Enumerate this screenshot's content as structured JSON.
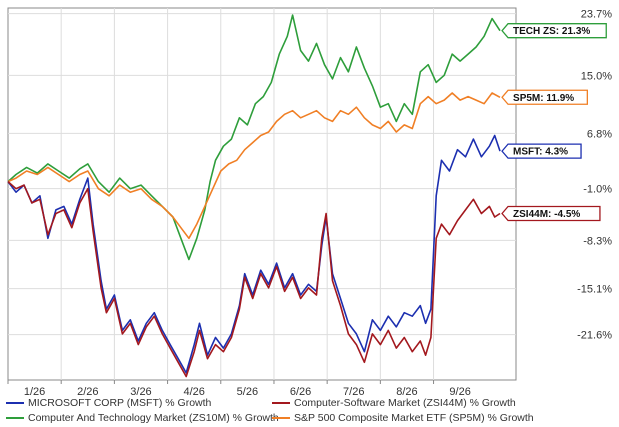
{
  "chart_data": {
    "type": "line",
    "title": "",
    "xlabel": "",
    "ylabel": "",
    "x_ticks": [
      "1/26",
      "2/26",
      "3/26",
      "4/26",
      "5/26",
      "6/26",
      "7/26",
      "8/26",
      "9/26"
    ],
    "y_ticks": [
      "23.7%",
      "15.0%",
      "6.8%",
      "-1.0%",
      "-8.3%",
      "-15.1%",
      "-21.6%"
    ],
    "y_tick_values": [
      23.7,
      15.0,
      6.8,
      -1.0,
      -8.3,
      -15.1,
      -21.6
    ],
    "ylim": [
      -28,
      24.5
    ],
    "x_range": [
      0,
      9.55
    ],
    "grid": true,
    "legend_position": "bottom",
    "series": [
      {
        "name": "Computer And Technology Market (ZS10M) % Growth",
        "color": "#2e9e3b",
        "end_label": "TECH ZS: 21.3%",
        "points": [
          [
            0.0,
            0.0
          ],
          [
            0.15,
            1.0
          ],
          [
            0.35,
            2.0
          ],
          [
            0.55,
            1.2
          ],
          [
            0.75,
            2.5
          ],
          [
            0.95,
            1.5
          ],
          [
            1.15,
            0.5
          ],
          [
            1.35,
            1.8
          ],
          [
            1.5,
            2.5
          ],
          [
            1.7,
            0.0
          ],
          [
            1.9,
            -1.5
          ],
          [
            2.1,
            0.5
          ],
          [
            2.3,
            -1.0
          ],
          [
            2.5,
            -0.5
          ],
          [
            2.7,
            -2.0
          ],
          [
            2.9,
            -3.5
          ],
          [
            3.1,
            -5.0
          ],
          [
            3.25,
            -8.0
          ],
          [
            3.4,
            -11.0
          ],
          [
            3.55,
            -8.0
          ],
          [
            3.7,
            -4.0
          ],
          [
            3.8,
            0.0
          ],
          [
            3.9,
            3.0
          ],
          [
            4.05,
            5.0
          ],
          [
            4.2,
            6.0
          ],
          [
            4.35,
            9.0
          ],
          [
            4.5,
            8.0
          ],
          [
            4.65,
            11.0
          ],
          [
            4.8,
            12.0
          ],
          [
            4.95,
            14.0
          ],
          [
            5.1,
            18.0
          ],
          [
            5.25,
            20.5
          ],
          [
            5.35,
            23.5
          ],
          [
            5.5,
            18.5
          ],
          [
            5.65,
            17.0
          ],
          [
            5.8,
            19.5
          ],
          [
            5.95,
            16.5
          ],
          [
            6.1,
            14.5
          ],
          [
            6.25,
            17.5
          ],
          [
            6.4,
            15.5
          ],
          [
            6.55,
            19.0
          ],
          [
            6.7,
            16.0
          ],
          [
            6.85,
            13.5
          ],
          [
            7.0,
            10.5
          ],
          [
            7.15,
            11.0
          ],
          [
            7.3,
            8.5
          ],
          [
            7.45,
            11.0
          ],
          [
            7.6,
            9.5
          ],
          [
            7.75,
            15.5
          ],
          [
            7.9,
            16.5
          ],
          [
            8.05,
            14.0
          ],
          [
            8.2,
            15.0
          ],
          [
            8.35,
            18.0
          ],
          [
            8.5,
            17.0
          ],
          [
            8.65,
            18.0
          ],
          [
            8.8,
            19.0
          ],
          [
            8.95,
            20.5
          ],
          [
            9.1,
            23.0
          ],
          [
            9.25,
            21.3
          ]
        ]
      },
      {
        "name": "S&P 500 Composite Market ETF (SP5M) % Growth",
        "color": "#f07f25",
        "end_label": "SP5M: 11.9%",
        "points": [
          [
            0.0,
            0.0
          ],
          [
            0.15,
            0.5
          ],
          [
            0.35,
            1.5
          ],
          [
            0.55,
            1.0
          ],
          [
            0.75,
            2.0
          ],
          [
            0.95,
            1.0
          ],
          [
            1.15,
            0.0
          ],
          [
            1.35,
            1.0
          ],
          [
            1.5,
            1.5
          ],
          [
            1.7,
            -1.0
          ],
          [
            1.9,
            -2.0
          ],
          [
            2.1,
            -0.5
          ],
          [
            2.3,
            -1.5
          ],
          [
            2.5,
            -1.0
          ],
          [
            2.7,
            -2.5
          ],
          [
            2.9,
            -3.5
          ],
          [
            3.1,
            -5.0
          ],
          [
            3.25,
            -6.5
          ],
          [
            3.4,
            -8.0
          ],
          [
            3.55,
            -6.0
          ],
          [
            3.7,
            -3.5
          ],
          [
            3.85,
            -1.0
          ],
          [
            4.0,
            1.5
          ],
          [
            4.15,
            2.5
          ],
          [
            4.3,
            3.0
          ],
          [
            4.45,
            4.5
          ],
          [
            4.6,
            5.5
          ],
          [
            4.75,
            6.5
          ],
          [
            4.9,
            7.0
          ],
          [
            5.05,
            8.5
          ],
          [
            5.2,
            9.5
          ],
          [
            5.35,
            10.0
          ],
          [
            5.5,
            9.0
          ],
          [
            5.65,
            9.5
          ],
          [
            5.8,
            10.0
          ],
          [
            5.95,
            9.0
          ],
          [
            6.1,
            8.5
          ],
          [
            6.25,
            10.0
          ],
          [
            6.4,
            9.5
          ],
          [
            6.55,
            10.5
          ],
          [
            6.7,
            9.0
          ],
          [
            6.85,
            8.0
          ],
          [
            7.0,
            7.5
          ],
          [
            7.15,
            8.5
          ],
          [
            7.3,
            7.0
          ],
          [
            7.45,
            8.0
          ],
          [
            7.6,
            7.5
          ],
          [
            7.75,
            11.0
          ],
          [
            7.9,
            12.0
          ],
          [
            8.05,
            11.0
          ],
          [
            8.2,
            11.5
          ],
          [
            8.35,
            12.5
          ],
          [
            8.5,
            11.5
          ],
          [
            8.65,
            12.0
          ],
          [
            8.8,
            11.5
          ],
          [
            8.95,
            11.0
          ],
          [
            9.1,
            12.5
          ],
          [
            9.25,
            11.9
          ]
        ]
      },
      {
        "name": "MICROSOFT CORP (MSFT) % Growth",
        "color": "#1c2fb0",
        "end_label": "MSFT: 4.3%",
        "points": [
          [
            0.0,
            0.0
          ],
          [
            0.15,
            -1.5
          ],
          [
            0.3,
            -0.5
          ],
          [
            0.45,
            -3.0
          ],
          [
            0.6,
            -2.0
          ],
          [
            0.75,
            -8.0
          ],
          [
            0.9,
            -4.0
          ],
          [
            1.05,
            -3.5
          ],
          [
            1.2,
            -6.0
          ],
          [
            1.35,
            -2.5
          ],
          [
            1.5,
            0.5
          ],
          [
            1.6,
            -6.0
          ],
          [
            1.75,
            -14.0
          ],
          [
            1.85,
            -18.0
          ],
          [
            2.0,
            -16.0
          ],
          [
            2.15,
            -21.0
          ],
          [
            2.3,
            -19.5
          ],
          [
            2.45,
            -22.5
          ],
          [
            2.6,
            -20.0
          ],
          [
            2.75,
            -18.5
          ],
          [
            2.9,
            -21.0
          ],
          [
            3.05,
            -23.0
          ],
          [
            3.2,
            -25.0
          ],
          [
            3.35,
            -27.0
          ],
          [
            3.5,
            -23.0
          ],
          [
            3.6,
            -20.0
          ],
          [
            3.75,
            -24.5
          ],
          [
            3.9,
            -22.0
          ],
          [
            4.05,
            -23.5
          ],
          [
            4.2,
            -21.5
          ],
          [
            4.35,
            -17.5
          ],
          [
            4.45,
            -13.0
          ],
          [
            4.6,
            -16.0
          ],
          [
            4.75,
            -12.5
          ],
          [
            4.9,
            -14.5
          ],
          [
            5.05,
            -11.5
          ],
          [
            5.2,
            -15.0
          ],
          [
            5.35,
            -13.0
          ],
          [
            5.5,
            -16.0
          ],
          [
            5.65,
            -14.5
          ],
          [
            5.8,
            -15.5
          ],
          [
            5.9,
            -9.0
          ],
          [
            5.98,
            -5.0
          ],
          [
            6.1,
            -13.0
          ],
          [
            6.25,
            -16.5
          ],
          [
            6.4,
            -20.0
          ],
          [
            6.55,
            -21.5
          ],
          [
            6.7,
            -24.0
          ],
          [
            6.85,
            -19.5
          ],
          [
            7.0,
            -21.0
          ],
          [
            7.15,
            -19.0
          ],
          [
            7.3,
            -20.5
          ],
          [
            7.45,
            -18.5
          ],
          [
            7.6,
            -19.0
          ],
          [
            7.75,
            -17.5
          ],
          [
            7.85,
            -20.0
          ],
          [
            7.95,
            -18.0
          ],
          [
            8.05,
            -2.0
          ],
          [
            8.15,
            3.0
          ],
          [
            8.3,
            1.5
          ],
          [
            8.45,
            4.5
          ],
          [
            8.6,
            3.5
          ],
          [
            8.75,
            6.0
          ],
          [
            8.9,
            3.5
          ],
          [
            9.05,
            5.0
          ],
          [
            9.15,
            6.5
          ],
          [
            9.25,
            4.3
          ]
        ]
      },
      {
        "name": "Computer-Software Market (ZSI44M) % Growth",
        "color": "#a3181e",
        "end_label": "ZSI44M: -4.5%",
        "points": [
          [
            0.0,
            0.0
          ],
          [
            0.15,
            -1.0
          ],
          [
            0.3,
            -0.5
          ],
          [
            0.45,
            -3.0
          ],
          [
            0.6,
            -2.5
          ],
          [
            0.75,
            -7.5
          ],
          [
            0.9,
            -4.5
          ],
          [
            1.05,
            -4.0
          ],
          [
            1.2,
            -6.5
          ],
          [
            1.35,
            -3.0
          ],
          [
            1.5,
            -1.0
          ],
          [
            1.6,
            -7.0
          ],
          [
            1.75,
            -15.0
          ],
          [
            1.85,
            -18.5
          ],
          [
            2.0,
            -16.5
          ],
          [
            2.15,
            -21.5
          ],
          [
            2.3,
            -20.0
          ],
          [
            2.45,
            -23.0
          ],
          [
            2.6,
            -20.5
          ],
          [
            2.75,
            -19.0
          ],
          [
            2.9,
            -21.5
          ],
          [
            3.05,
            -23.5
          ],
          [
            3.2,
            -25.5
          ],
          [
            3.35,
            -27.5
          ],
          [
            3.5,
            -24.0
          ],
          [
            3.6,
            -21.0
          ],
          [
            3.75,
            -25.0
          ],
          [
            3.9,
            -23.0
          ],
          [
            4.05,
            -24.0
          ],
          [
            4.2,
            -22.0
          ],
          [
            4.35,
            -18.0
          ],
          [
            4.45,
            -13.5
          ],
          [
            4.6,
            -16.5
          ],
          [
            4.75,
            -13.0
          ],
          [
            4.9,
            -15.0
          ],
          [
            5.05,
            -12.0
          ],
          [
            5.2,
            -15.5
          ],
          [
            5.35,
            -13.5
          ],
          [
            5.5,
            -16.5
          ],
          [
            5.65,
            -15.0
          ],
          [
            5.8,
            -16.0
          ],
          [
            5.9,
            -8.0
          ],
          [
            5.98,
            -4.5
          ],
          [
            6.1,
            -14.0
          ],
          [
            6.25,
            -17.5
          ],
          [
            6.4,
            -21.5
          ],
          [
            6.55,
            -23.0
          ],
          [
            6.7,
            -25.5
          ],
          [
            6.85,
            -21.5
          ],
          [
            7.0,
            -23.0
          ],
          [
            7.15,
            -21.0
          ],
          [
            7.3,
            -23.5
          ],
          [
            7.45,
            -22.0
          ],
          [
            7.6,
            -24.0
          ],
          [
            7.75,
            -22.5
          ],
          [
            7.85,
            -24.5
          ],
          [
            7.95,
            -22.0
          ],
          [
            8.05,
            -8.0
          ],
          [
            8.15,
            -6.0
          ],
          [
            8.3,
            -7.5
          ],
          [
            8.45,
            -5.5
          ],
          [
            8.6,
            -4.0
          ],
          [
            8.75,
            -2.5
          ],
          [
            8.9,
            -4.5
          ],
          [
            9.05,
            -3.5
          ],
          [
            9.15,
            -5.0
          ],
          [
            9.25,
            -4.5
          ]
        ]
      }
    ]
  },
  "legend": [
    {
      "label": "MICROSOFT CORP (MSFT) % Growth",
      "color": "#1c2fb0"
    },
    {
      "label": "Computer-Software Market (ZSI44M) % Growth",
      "color": "#a3181e"
    },
    {
      "label": "Computer And Technology Market (ZS10M) % Growth",
      "color": "#2e9e3b"
    },
    {
      "label": "S&P 500 Composite Market ETF (SP5M) % Growth",
      "color": "#f07f25"
    }
  ]
}
